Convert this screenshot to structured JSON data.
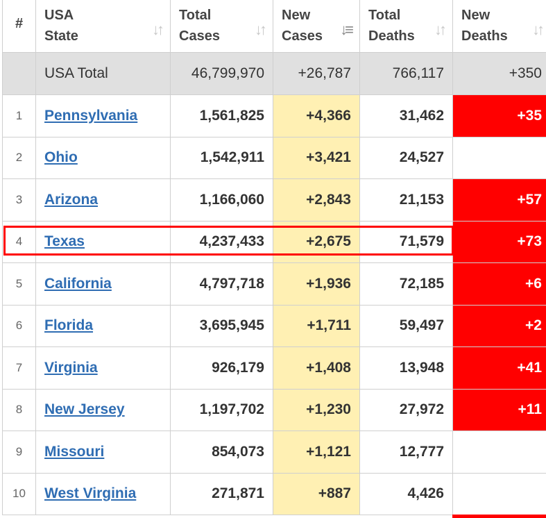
{
  "headers": {
    "rank": "#",
    "state_line1": "USA",
    "state_line2": "State",
    "total_cases_line1": "Total",
    "total_cases_line2": "Cases",
    "new_cases_line1": "New",
    "new_cases_line2": "Cases",
    "total_deaths_line1": "Total",
    "total_deaths_line2": "Deaths",
    "new_deaths_line1": "New",
    "new_deaths_line2": "Deaths"
  },
  "total_row": {
    "label": "USA Total",
    "total_cases": "46,799,970",
    "new_cases": "+26,787",
    "total_deaths": "766,117",
    "new_deaths": "+350"
  },
  "rows": [
    {
      "rank": "1",
      "state": "Pennsylvania",
      "total_cases": "1,561,825",
      "new_cases": "+4,366",
      "total_deaths": "31,462",
      "new_deaths": "+35"
    },
    {
      "rank": "2",
      "state": "Ohio",
      "total_cases": "1,542,911",
      "new_cases": "+3,421",
      "total_deaths": "24,527",
      "new_deaths": ""
    },
    {
      "rank": "3",
      "state": "Arizona",
      "total_cases": "1,166,060",
      "new_cases": "+2,843",
      "total_deaths": "21,153",
      "new_deaths": "+57"
    },
    {
      "rank": "4",
      "state": "Texas",
      "total_cases": "4,237,433",
      "new_cases": "+2,675",
      "total_deaths": "71,579",
      "new_deaths": "+73"
    },
    {
      "rank": "5",
      "state": "California",
      "total_cases": "4,797,718",
      "new_cases": "+1,936",
      "total_deaths": "72,185",
      "new_deaths": "+6"
    },
    {
      "rank": "6",
      "state": "Florida",
      "total_cases": "3,695,945",
      "new_cases": "+1,711",
      "total_deaths": "59,497",
      "new_deaths": "+2"
    },
    {
      "rank": "7",
      "state": "Virginia",
      "total_cases": "926,179",
      "new_cases": "+1,408",
      "total_deaths": "13,948",
      "new_deaths": "+41"
    },
    {
      "rank": "8",
      "state": "New Jersey",
      "total_cases": "1,197,702",
      "new_cases": "+1,230",
      "total_deaths": "27,972",
      "new_deaths": "+11"
    },
    {
      "rank": "9",
      "state": "Missouri",
      "total_cases": "854,073",
      "new_cases": "+1,121",
      "total_deaths": "12,777",
      "new_deaths": ""
    },
    {
      "rank": "10",
      "state": "West Virginia",
      "total_cases": "271,871",
      "new_cases": "+887",
      "total_deaths": "4,426",
      "new_deaths": ""
    }
  ],
  "highlighted_state": "Texas",
  "colors": {
    "new_deaths_bg": "#ff0000",
    "new_cases_bg": "#fff0b3",
    "total_row_bg": "#e0e0e0",
    "link": "#2f6db3",
    "highlight_border": "#ff0000"
  },
  "icons": {
    "sort_icon": "sort-up-down-icon",
    "sort_active_icon": "sort-desc-active-icon"
  }
}
